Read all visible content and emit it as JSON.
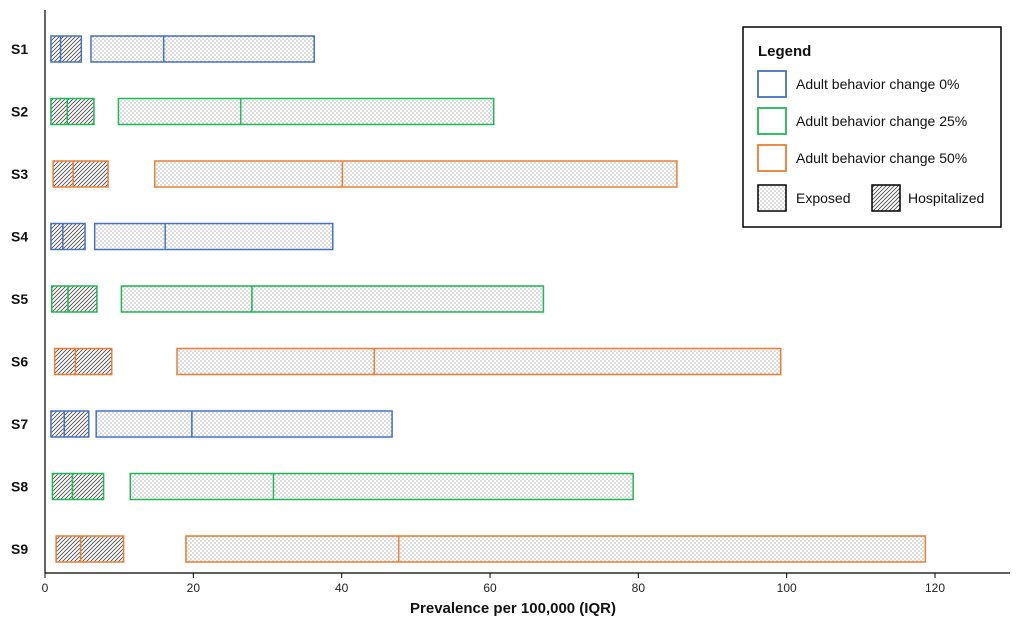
{
  "chart_data": {
    "type": "bar",
    "orientation": "horizontal",
    "xlabel": "Prevalence per 100,000 (IQR)",
    "xlim": [
      0,
      130
    ],
    "xticks": [
      0,
      20,
      40,
      60,
      80,
      100,
      120
    ],
    "grid": false,
    "categories": [
      "S1",
      "S2",
      "S3",
      "S4",
      "S5",
      "S6",
      "S7",
      "S8",
      "S9"
    ],
    "legend": {
      "title": "Legend",
      "placement": "top-right",
      "groups": [
        {
          "key": "bc0",
          "label": "Adult behavior change 0%",
          "color": "#4472c4"
        },
        {
          "key": "bc25",
          "label": "Adult behavior change 25%",
          "color": "#1db954"
        },
        {
          "key": "bc50",
          "label": "Adult behavior change 50%",
          "color": "#ed7d31"
        }
      ],
      "patterns": [
        {
          "key": "exposed",
          "label": "Exposed"
        },
        {
          "key": "hospitalized",
          "label": "Hospitalized"
        }
      ]
    },
    "rows": [
      {
        "scenario": "S1",
        "group": "bc0",
        "hospitalized": {
          "q1": 0.8,
          "median": 2.1,
          "q3": 4.9
        },
        "exposed": {
          "q1": 6.2,
          "median": 16.0,
          "q3": 36.3
        }
      },
      {
        "scenario": "S2",
        "group": "bc25",
        "hospitalized": {
          "q1": 0.8,
          "median": 3.0,
          "q3": 6.6
        },
        "exposed": {
          "q1": 9.9,
          "median": 26.4,
          "q3": 60.5
        }
      },
      {
        "scenario": "S3",
        "group": "bc50",
        "hospitalized": {
          "q1": 1.1,
          "median": 3.8,
          "q3": 8.5
        },
        "exposed": {
          "q1": 14.8,
          "median": 40.1,
          "q3": 85.2
        }
      },
      {
        "scenario": "S4",
        "group": "bc0",
        "hospitalized": {
          "q1": 0.8,
          "median": 2.4,
          "q3": 5.4
        },
        "exposed": {
          "q1": 6.7,
          "median": 16.2,
          "q3": 38.8
        }
      },
      {
        "scenario": "S5",
        "group": "bc25",
        "hospitalized": {
          "q1": 0.9,
          "median": 3.1,
          "q3": 7.0
        },
        "exposed": {
          "q1": 10.3,
          "median": 27.9,
          "q3": 67.2
        }
      },
      {
        "scenario": "S6",
        "group": "bc50",
        "hospitalized": {
          "q1": 1.3,
          "median": 4.1,
          "q3": 9.0
        },
        "exposed": {
          "q1": 17.8,
          "median": 44.4,
          "q3": 99.2
        }
      },
      {
        "scenario": "S7",
        "group": "bc0",
        "hospitalized": {
          "q1": 0.8,
          "median": 2.6,
          "q3": 5.9
        },
        "exposed": {
          "q1": 6.9,
          "median": 19.8,
          "q3": 46.8
        }
      },
      {
        "scenario": "S8",
        "group": "bc25",
        "hospitalized": {
          "q1": 1.0,
          "median": 3.7,
          "q3": 7.9
        },
        "exposed": {
          "q1": 11.5,
          "median": 30.8,
          "q3": 79.3
        }
      },
      {
        "scenario": "S9",
        "group": "bc50",
        "hospitalized": {
          "q1": 1.5,
          "median": 4.8,
          "q3": 10.6
        },
        "exposed": {
          "q1": 19.0,
          "median": 47.7,
          "q3": 118.7
        }
      }
    ]
  }
}
